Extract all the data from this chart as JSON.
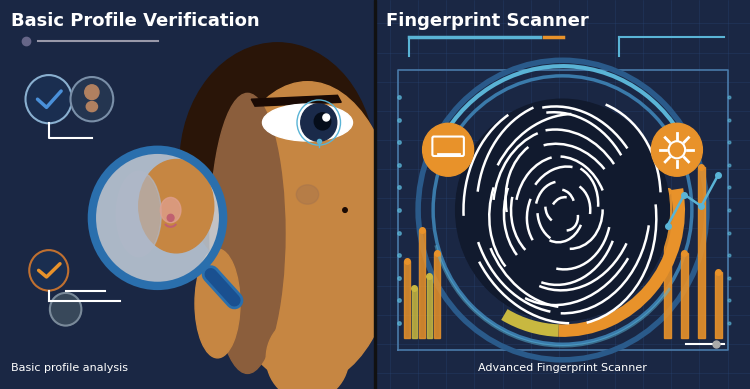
{
  "fig_width": 7.5,
  "fig_height": 3.89,
  "dpi": 100,
  "left_bg": "#1a2744",
  "right_bg": "#1e3060",
  "left_title": "Basic Profile Verification",
  "right_title": "Fingerprint Scanner",
  "left_subtitle": "Basic profile analysis",
  "right_subtitle": "Advanced Fingerprint Scanner",
  "title_color": "#ffffff",
  "subtitle_color": "#ffffff",
  "title_fontsize": 13,
  "subtitle_fontsize": 8,
  "face_skin_dark": "#8B5E3C",
  "face_skin_light": "#C68642",
  "face_skin_mid": "#A0714F",
  "eye_iris": "#1a2a4a",
  "check_blue": "#4A90D9",
  "check_orange": "#E8922A",
  "magnifier_ring": "#2a6fad",
  "magnifier_glass": "#d0dce8",
  "fp_orange": "#E8922A",
  "fp_light_blue": "#5ab4d6",
  "fp_dark": "#111a2e",
  "grid_line_color": "#2a4a7a",
  "bar_yellow": "#c8b840"
}
